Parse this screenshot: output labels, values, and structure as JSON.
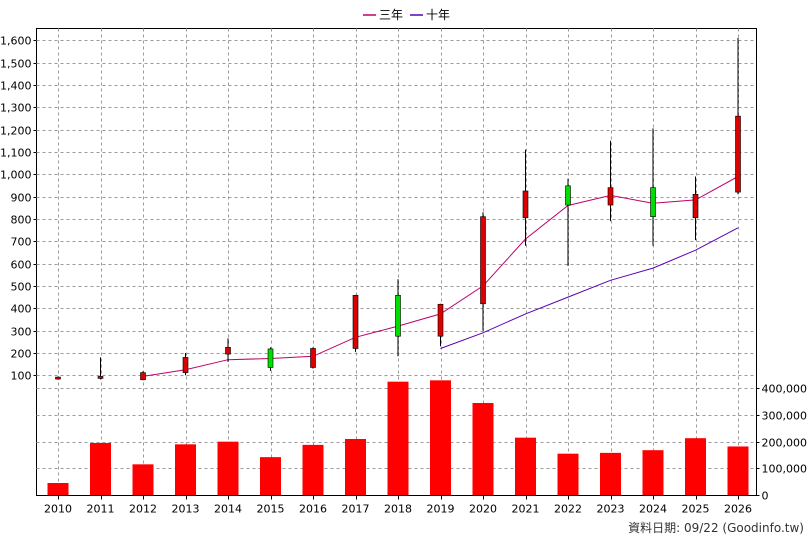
{
  "legend": [
    {
      "label": "三年",
      "color": "#c0006b"
    },
    {
      "label": "十年",
      "color": "#5a00b5"
    }
  ],
  "source_note": "資料日期: 09/22 (Goodinfo.tw)",
  "colors": {
    "up": "#dd0000",
    "down": "#00dd00",
    "volume": "#ff0000"
  },
  "chart_data": {
    "type": "candlestick",
    "x": [
      "2010",
      "2011",
      "2012",
      "2013",
      "2014",
      "2015",
      "2016",
      "2017",
      "2018",
      "2019",
      "2020",
      "2021",
      "2022",
      "2023",
      "2024",
      "2025",
      "2026"
    ],
    "price_axis": {
      "ylim": [
        70,
        1650
      ],
      "ticks": [
        100,
        200,
        300,
        400,
        500,
        600,
        700,
        800,
        900,
        1000,
        1100,
        1200,
        1300,
        1400,
        1500,
        1600
      ],
      "tick_labels": [
        "100",
        "200",
        "300",
        "400",
        "500",
        "600",
        "700",
        "800",
        "900",
        "1,000",
        "1,100",
        "1,200",
        "1,300",
        "1,400",
        "1,500",
        "1,600"
      ]
    },
    "volume_axis": {
      "ylim": [
        0,
        450000
      ],
      "ticks": [
        0,
        100000,
        200000,
        300000,
        400000
      ],
      "tick_labels": [
        "0",
        "100,000",
        "200,000",
        "300,000",
        "400,000"
      ]
    },
    "ohlc": [
      {
        "open": 88,
        "high": 95,
        "low": 80,
        "close": 92
      },
      {
        "open": 88,
        "high": 180,
        "low": 82,
        "close": 95
      },
      {
        "open": 80,
        "high": 118,
        "low": 78,
        "close": 112
      },
      {
        "open": 112,
        "high": 200,
        "low": 100,
        "close": 180
      },
      {
        "open": 195,
        "high": 265,
        "low": 160,
        "close": 225
      },
      {
        "open": 218,
        "high": 225,
        "low": 120,
        "close": 135
      },
      {
        "open": 135,
        "high": 225,
        "low": 130,
        "close": 220
      },
      {
        "open": 220,
        "high": 460,
        "low": 205,
        "close": 458
      },
      {
        "open": 458,
        "high": 530,
        "low": 185,
        "close": 275
      },
      {
        "open": 275,
        "high": 420,
        "low": 230,
        "close": 418
      },
      {
        "open": 420,
        "high": 830,
        "low": 300,
        "close": 810
      },
      {
        "open": 805,
        "high": 1110,
        "low": 680,
        "close": 925
      },
      {
        "open": 948,
        "high": 980,
        "low": 590,
        "close": 862
      },
      {
        "open": 862,
        "high": 1150,
        "low": 790,
        "close": 940
      },
      {
        "open": 940,
        "high": 1205,
        "low": 680,
        "close": 810
      },
      {
        "open": 805,
        "high": 990,
        "low": 705,
        "close": 910
      },
      {
        "open": 920,
        "high": 1610,
        "low": 910,
        "close": 1260
      }
    ],
    "series": [
      {
        "name": "三年",
        "values": [
          null,
          null,
          95,
          125,
          170,
          175,
          185,
          270,
          320,
          375,
          500,
          710,
          860,
          905,
          870,
          885,
          990
        ]
      },
      {
        "name": "十年",
        "values": [
          null,
          null,
          null,
          null,
          null,
          null,
          null,
          null,
          null,
          220,
          290,
          375,
          450,
          525,
          580,
          660,
          760
        ]
      }
    ],
    "volume": [
      45000,
      195000,
      115000,
      190000,
      200000,
      142000,
      188000,
      210000,
      425000,
      430000,
      345000,
      215000,
      155000,
      158000,
      168000,
      213000,
      182000
    ]
  }
}
